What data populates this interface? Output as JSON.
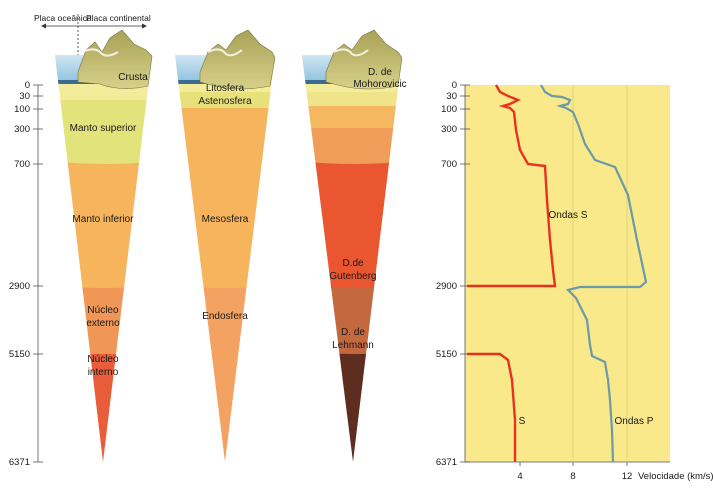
{
  "top_labels": {
    "oceanic_plate": "Placa oceânica",
    "continental_plate": "Placa continental"
  },
  "depth_ticks": [
    "0",
    "30",
    "100",
    "300",
    "700",
    "2900",
    "5150",
    "6371"
  ],
  "cone_left": {
    "labels": {
      "crust": "Crusta",
      "upper_mantle": "Manto superior",
      "lower_mantle": "Manto inferior",
      "outer_core_1": "Núcleo",
      "outer_core_2": "externo",
      "inner_core_1": "Núcleo",
      "inner_core_2": "interno"
    }
  },
  "cone_middle": {
    "labels": {
      "lithosphere": "Litosfera",
      "asthenosphere": "Astenosfera",
      "mesosphere": "Mesosfera",
      "endosphere": "Endosfera"
    }
  },
  "cone_right": {
    "labels": {
      "moho_1": "D. de",
      "moho_2": "Mohorovicic",
      "gutenberg_1": "D.de",
      "gutenberg_2": "Gutenberg",
      "lehmann_1": "D. de",
      "lehmann_2": "Lehmann"
    }
  },
  "velocity_chart": {
    "x_ticks": [
      "4",
      "8",
      "12"
    ],
    "x_unit_label": "Velocidade (km/s)",
    "s_waves_label": "Ondas S",
    "s_short_label": "S",
    "p_waves_label": "Ondas P",
    "colors": {
      "background": "#f9e98a",
      "s_line": "#e8321f",
      "p_line": "#6b9aa8"
    }
  }
}
